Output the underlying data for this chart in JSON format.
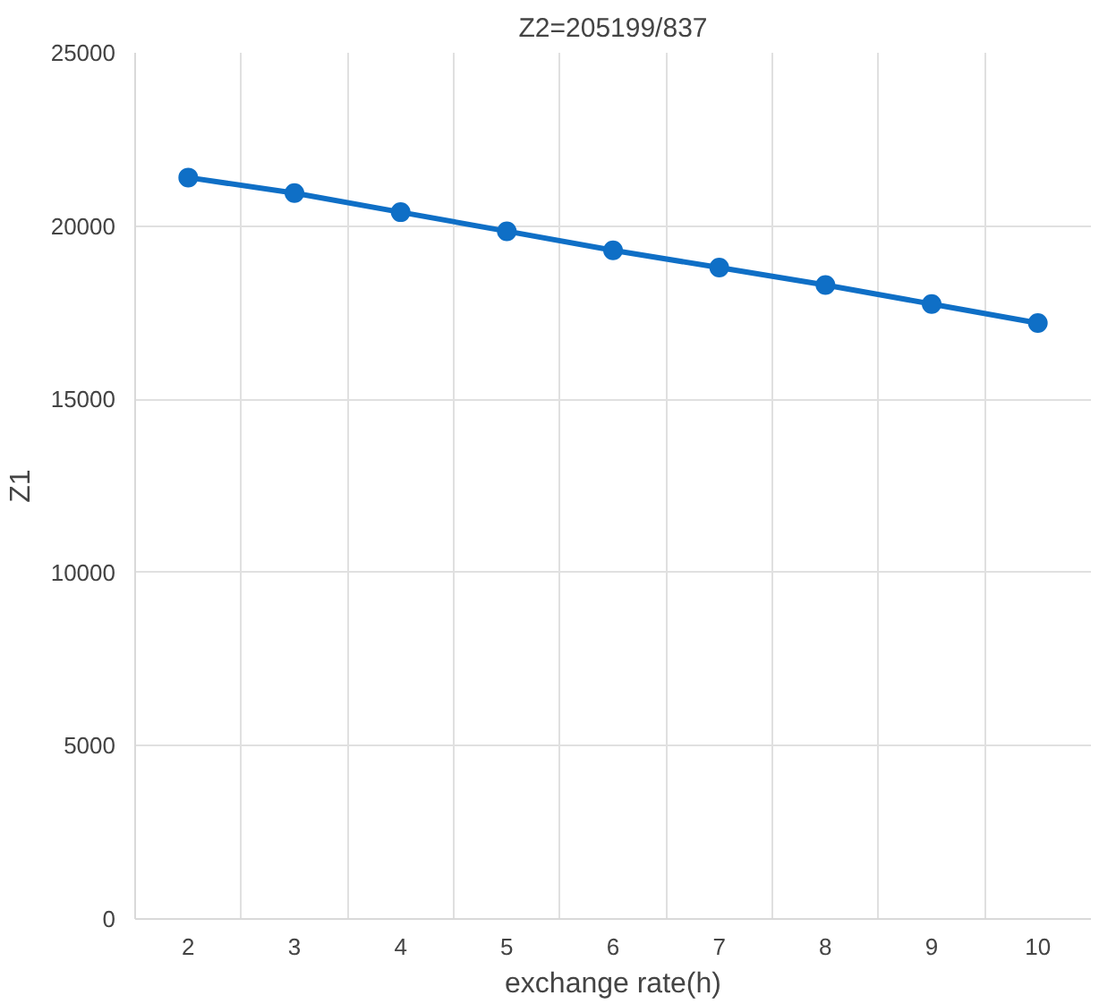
{
  "chart_data": {
    "type": "line",
    "title": "Z2=205199/837",
    "xlabel": "exchange rate(h)",
    "ylabel": "Z1",
    "categories": [
      "2",
      "3",
      "4",
      "5",
      "6",
      "7",
      "8",
      "9",
      "10"
    ],
    "series": [
      {
        "color": "#0f6fc6",
        "values": [
          21400,
          20950,
          20400,
          19850,
          19300,
          18800,
          18300,
          17750,
          17200
        ]
      }
    ],
    "ylim": [
      0,
      25000
    ],
    "yticks": [
      0,
      5000,
      10000,
      15000,
      20000,
      25000
    ],
    "grid": true,
    "marker": "circle",
    "line_style": "solid"
  }
}
